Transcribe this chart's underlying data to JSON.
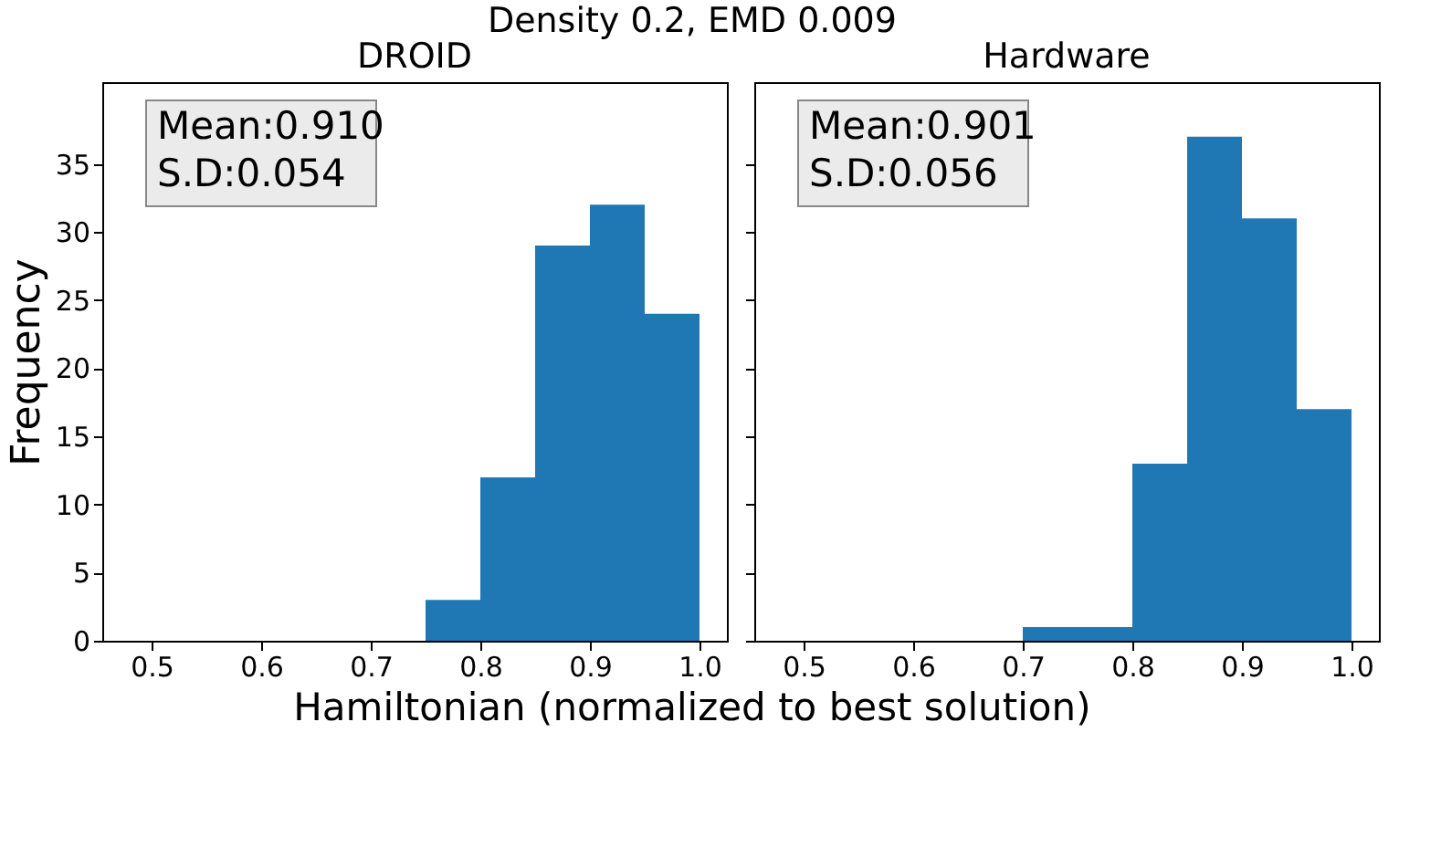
{
  "chart_data": [
    {
      "type": "histogram",
      "title": "Density 0.2, EMD 0.009",
      "subtitle": "DROID",
      "xlabel": "Hamiltonian (normalized to best solution)",
      "ylabel": "Frequency",
      "bins": [
        0.5,
        0.55,
        0.6,
        0.65,
        0.7,
        0.75,
        0.8,
        0.85,
        0.9,
        0.95,
        1.0
      ],
      "values": [
        0,
        0,
        0,
        0,
        0,
        3,
        12,
        29,
        32,
        24
      ],
      "color": "#1f77b4",
      "xlim": [
        0.455,
        1.025
      ],
      "ylim": [
        0,
        41
      ],
      "xticks": [
        0.5,
        0.6,
        0.7,
        0.8,
        0.9,
        {
          "value": 1.0,
          "label": "1.0"
        }
      ],
      "yticks": [
        0,
        5,
        10,
        15,
        20,
        25,
        30,
        35
      ],
      "annotations": [
        "Mean:0.910\nS.D:0.054"
      ],
      "grid": false
    },
    {
      "type": "histogram",
      "title": "Hardware",
      "bins": [
        0.5,
        0.55,
        0.6,
        0.65,
        0.7,
        0.75,
        0.8,
        0.85,
        0.9,
        0.95,
        1.0
      ],
      "values": [
        0,
        0,
        0,
        0,
        1,
        1,
        13,
        37,
        31,
        17
      ],
      "color": "#1f77b4",
      "xlim": [
        0.455,
        1.025
      ],
      "ylim": [
        0,
        41
      ],
      "xticks": [
        0.5,
        0.6,
        0.7,
        0.8,
        0.9,
        {
          "value": 1.0,
          "label": "1.0"
        }
      ],
      "yticks": [
        0,
        5,
        10,
        15,
        20,
        25,
        30,
        35
      ],
      "annotations": [
        "Mean:0.901\nS.D:0.056"
      ],
      "grid": false,
      "tick_labels": "x"
    }
  ]
}
